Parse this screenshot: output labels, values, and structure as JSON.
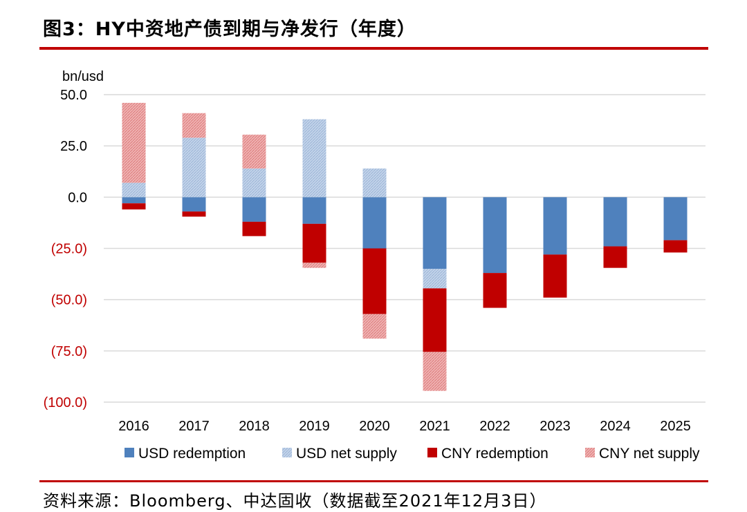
{
  "title": "图3：HY中资地产债到期与净发行（年度）",
  "source": "资料来源：Bloomberg、中达固收（数据截至2021年12月3日）",
  "colors": {
    "usd_redemption": "#4f81bd",
    "usd_net_supply": "#b4c8e4",
    "cny_redemption": "#c00000",
    "cny_net_supply": "#e89b9b",
    "accent_rule": "#c00000",
    "negative_label": "#c00000"
  },
  "chart_data": {
    "type": "bar",
    "stacked": true,
    "unit_label": "bn/usd",
    "categories": [
      "2016",
      "2017",
      "2018",
      "2019",
      "2020",
      "2021",
      "2022",
      "2023",
      "2024",
      "2025"
    ],
    "y_tick_values": [
      50,
      25,
      0,
      -25,
      -50,
      -75,
      -100
    ],
    "y_tick_labels": [
      "50.0",
      "25.0",
      "0.0",
      "(25.0)",
      "(50.0)",
      "(75.0)",
      "(100.0)"
    ],
    "ylim": [
      -100,
      50
    ],
    "grid": true,
    "legend_position": "bottom",
    "series": [
      {
        "name": "USD redemption",
        "key": "usd_redemption",
        "values": [
          -3,
          -7,
          -12,
          -13,
          -25,
          -35,
          -37,
          -28,
          -24,
          -21
        ]
      },
      {
        "name": "USD net supply",
        "key": "usd_net_supply",
        "values": [
          7,
          29,
          14,
          38,
          14,
          -9.5,
          0,
          0,
          0,
          0
        ]
      },
      {
        "name": "CNY redemption",
        "key": "cny_redemption",
        "values": [
          -3,
          -2.5,
          -7,
          -19,
          -32,
          -31,
          -17,
          -21,
          -10.5,
          -6
        ]
      },
      {
        "name": "CNY net supply",
        "key": "cny_net_supply",
        "values": [
          39,
          12,
          16.5,
          -2.5,
          -12,
          -19,
          0,
          0,
          0,
          0
        ]
      }
    ]
  }
}
